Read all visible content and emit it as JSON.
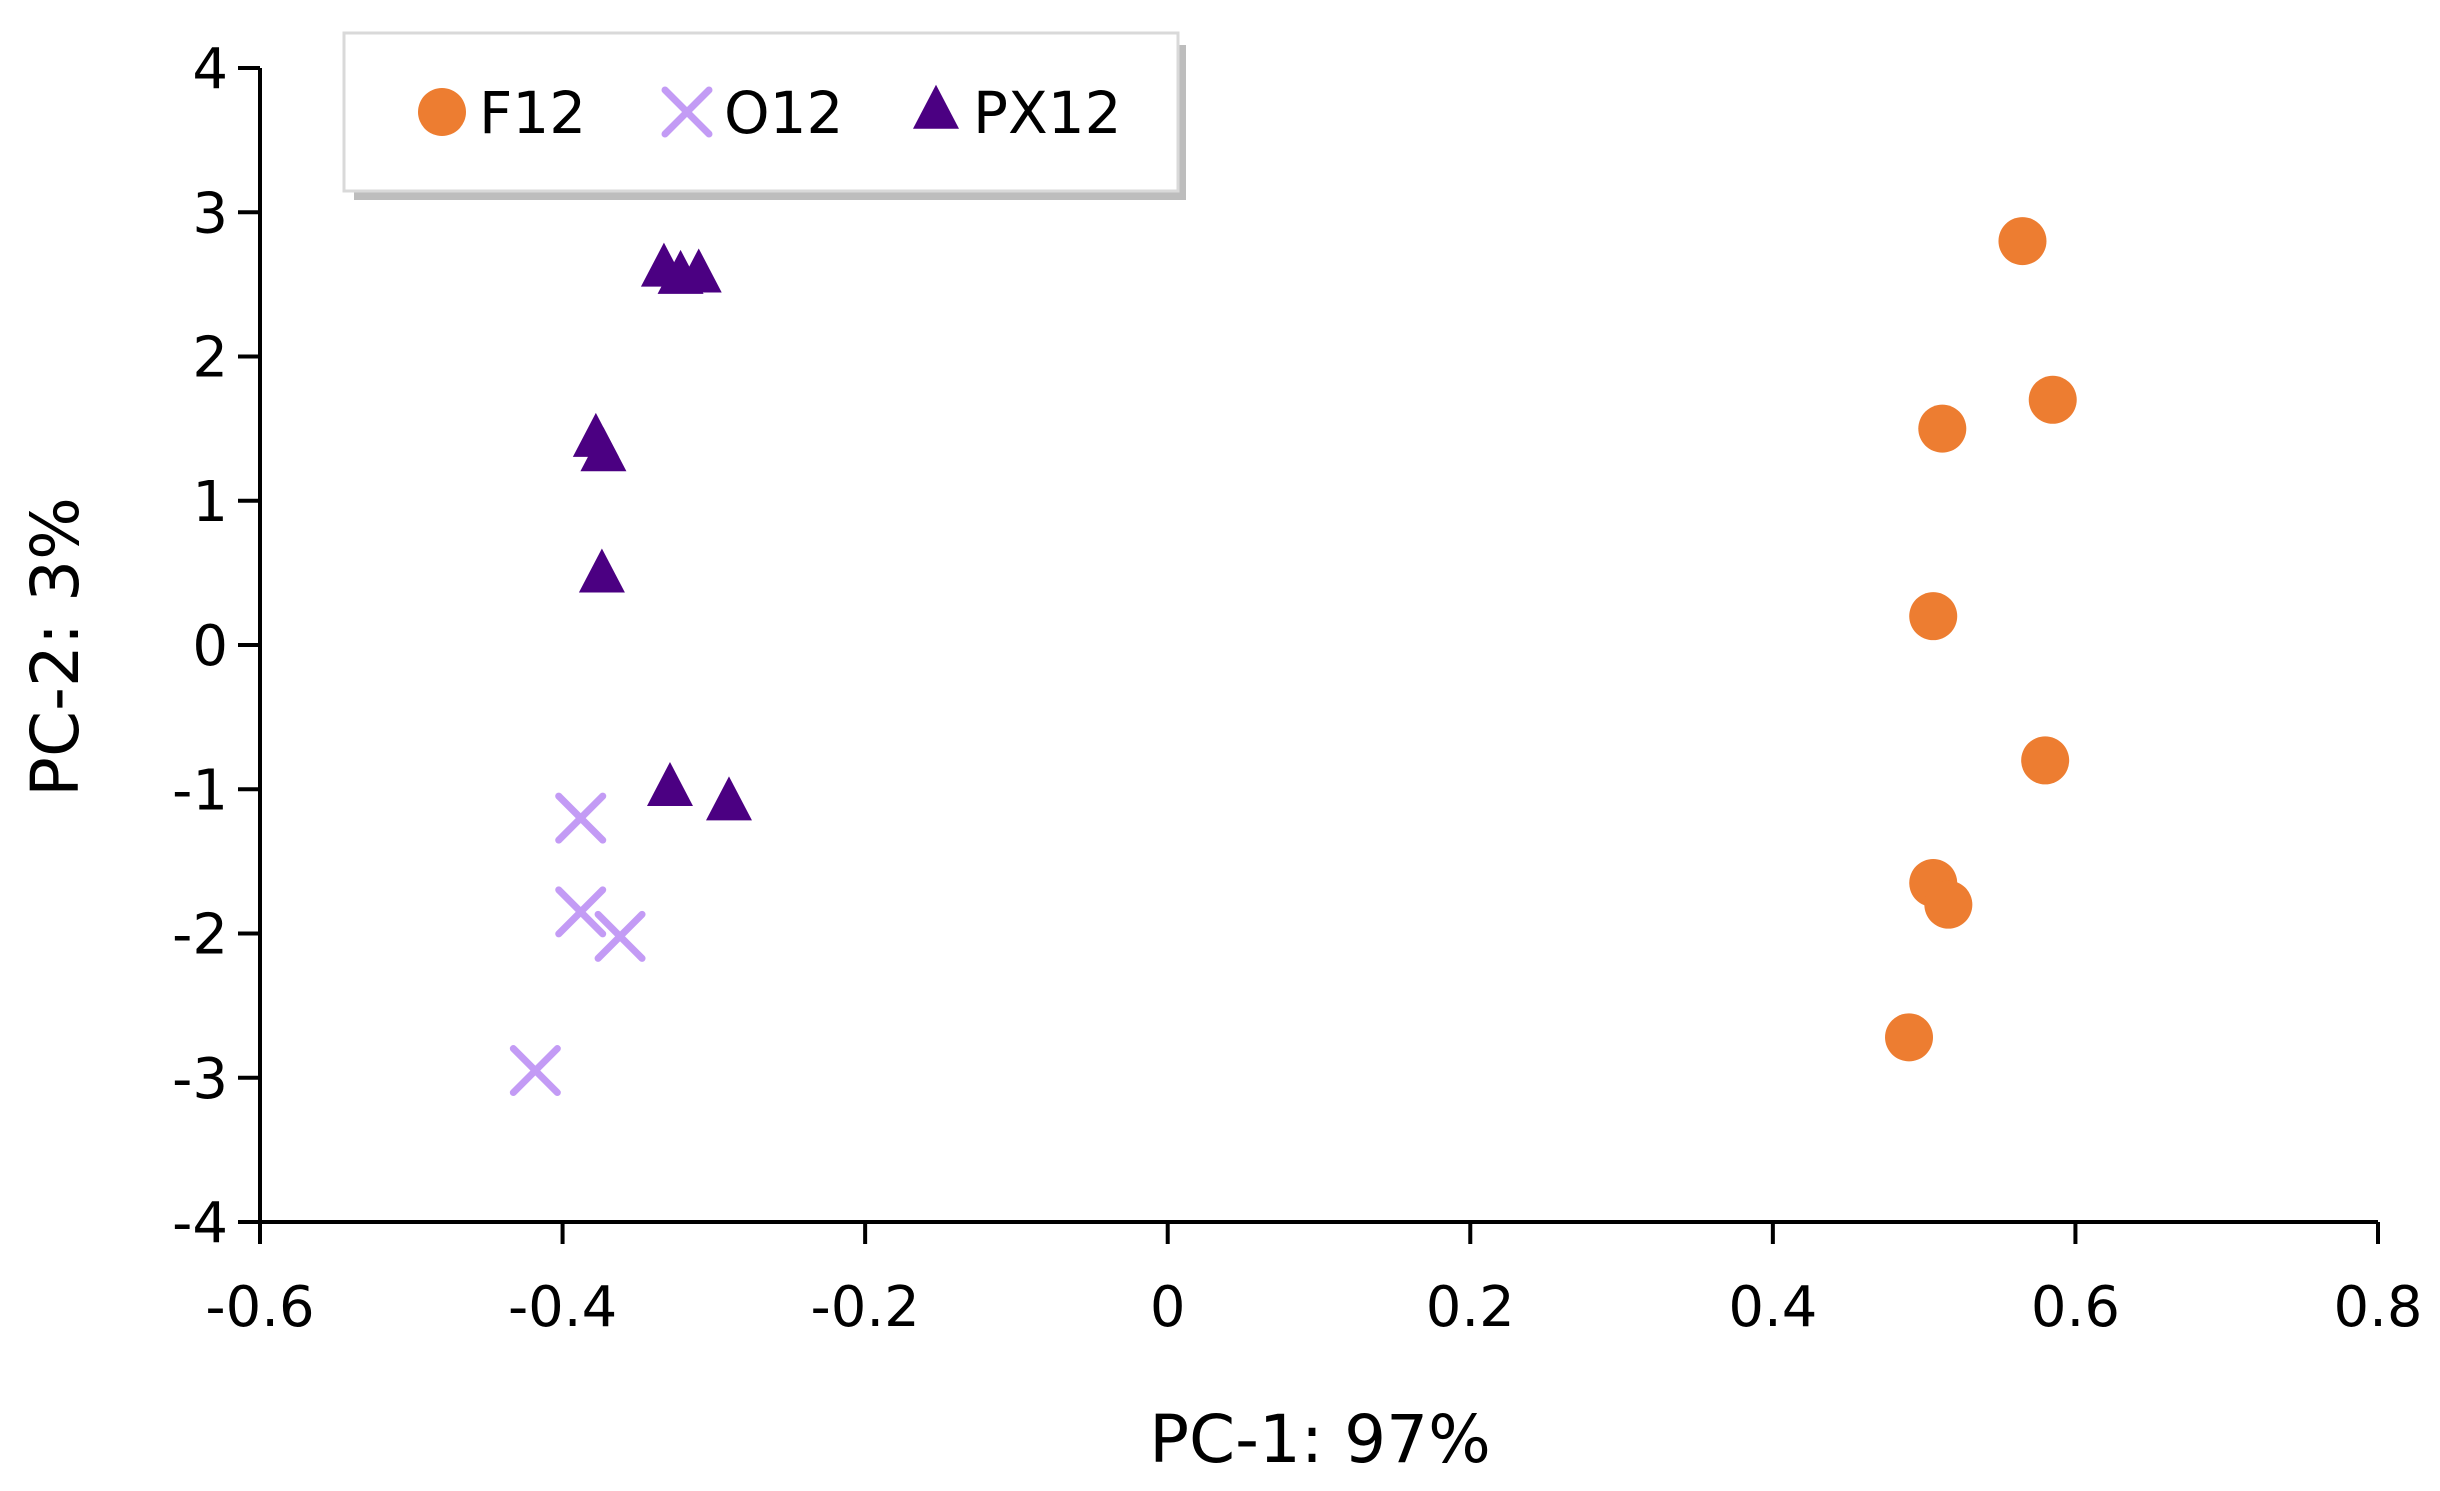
{
  "chart_data": {
    "type": "scatter",
    "xlabel": "PC-1: 97%",
    "ylabel": "PC-2: 3%",
    "xlim": [
      -0.6,
      0.8
    ],
    "ylim": [
      -4,
      4
    ],
    "xticks": [
      -0.6,
      -0.4,
      -0.2,
      0,
      0.2,
      0.4,
      0.6,
      0.8
    ],
    "yticks": [
      -4,
      -3,
      -2,
      -1,
      0,
      1,
      2,
      3,
      4
    ],
    "xtick_labels": [
      "-0.6",
      "-0.4",
      "-0.2",
      "0",
      "0.2",
      "0.4",
      "0.6",
      "0.8"
    ],
    "ytick_labels": [
      "-4",
      "-3",
      "-2",
      "-1",
      "0",
      "1",
      "2",
      "3",
      "4"
    ],
    "legend_position": "top-left",
    "series": [
      {
        "name": "F12",
        "marker": "circle",
        "color": "#ED7D31",
        "points": [
          [
            0.565,
            2.8
          ],
          [
            0.585,
            1.7
          ],
          [
            0.512,
            1.5
          ],
          [
            0.506,
            0.2
          ],
          [
            0.58,
            -0.8
          ],
          [
            0.506,
            -1.65
          ],
          [
            0.516,
            -1.8
          ],
          [
            0.49,
            -2.72
          ]
        ]
      },
      {
        "name": "O12",
        "marker": "x",
        "color": "#C39BF5",
        "points": [
          [
            -0.388,
            -1.2
          ],
          [
            -0.388,
            -1.85
          ],
          [
            -0.362,
            -2.02
          ],
          [
            -0.418,
            -2.95
          ]
        ]
      },
      {
        "name": "PX12",
        "marker": "triangle",
        "color": "#4B0082",
        "points": [
          [
            -0.333,
            2.6
          ],
          [
            -0.322,
            2.55
          ],
          [
            -0.31,
            2.56
          ],
          [
            -0.378,
            1.42
          ],
          [
            -0.373,
            1.32
          ],
          [
            -0.374,
            0.48
          ],
          [
            -0.329,
            -1.0
          ],
          [
            -0.29,
            -1.1
          ]
        ]
      }
    ]
  }
}
